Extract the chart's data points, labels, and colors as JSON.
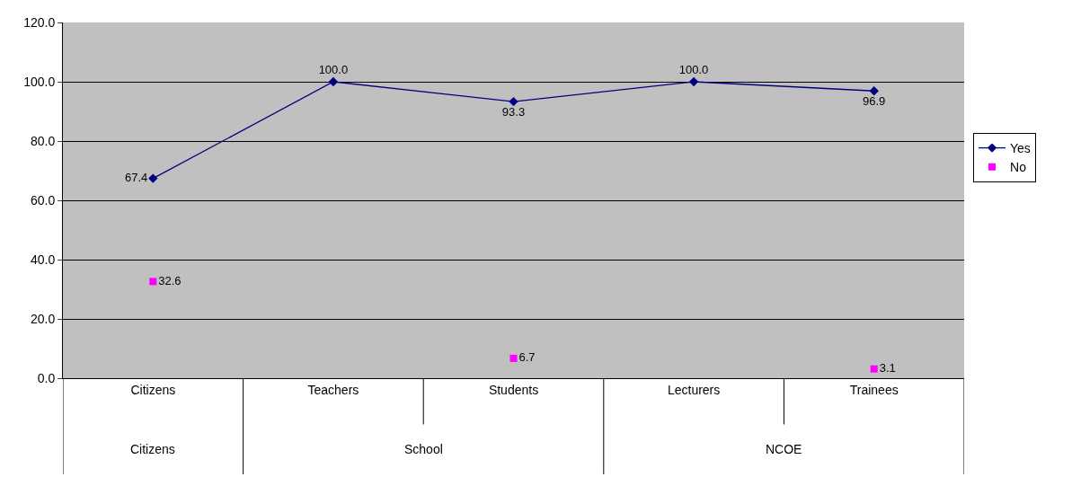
{
  "chart_data": {
    "type": "line",
    "categories": [
      "Citizens",
      "Teachers",
      "Students",
      "Lecturers",
      "Trainees"
    ],
    "series": [
      {
        "name": "Yes",
        "color": "#000080",
        "marker": "diamond",
        "values": [
          67.4,
          100.0,
          93.3,
          100.0,
          96.9
        ],
        "value_labels": [
          "67.4",
          "100.0",
          "93.3",
          "100.0",
          "96.9"
        ]
      },
      {
        "name": "No",
        "type": "scatter",
        "color": "#ff00ff",
        "marker": "square",
        "values": [
          32.6,
          null,
          6.7,
          null,
          3.1
        ],
        "value_labels": [
          "32.6",
          null,
          "6.7",
          null,
          "3.1"
        ]
      }
    ],
    "ylim": [
      0,
      120
    ],
    "yticks": [
      {
        "value": 0,
        "label": "0.0"
      },
      {
        "value": 20,
        "label": "20.0"
      },
      {
        "value": 40,
        "label": "40.0"
      },
      {
        "value": 60,
        "label": "60.0"
      },
      {
        "value": 80,
        "label": "80.0"
      },
      {
        "value": 100,
        "label": "100.0"
      },
      {
        "value": 120,
        "label": "120.0"
      }
    ],
    "grid": "y",
    "legend": "right",
    "annotations": [
      "Citizens",
      "School",
      "NCOE"
    ]
  }
}
